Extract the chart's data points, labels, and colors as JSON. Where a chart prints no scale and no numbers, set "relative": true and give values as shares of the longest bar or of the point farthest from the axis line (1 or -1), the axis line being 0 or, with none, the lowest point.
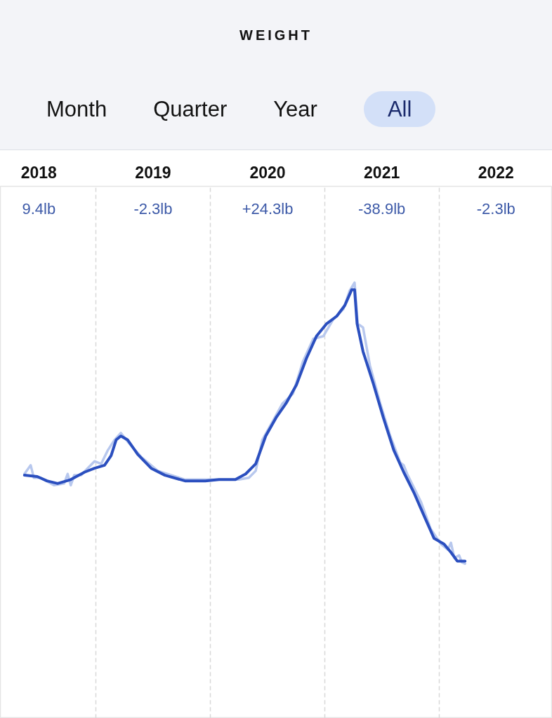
{
  "chart_data": {
    "type": "line",
    "title": "WEIGHT",
    "relative": true,
    "grid": "x",
    "line_style": "solid",
    "marker": "none",
    "annotations": [
      "Month",
      "Quarter",
      "Year",
      "All",
      "9.4lb",
      "-2.3lb",
      "+24.3lb",
      "-38.9lb",
      "-2.3lb"
    ],
    "xlim": [
      "2018-03-01",
      "2022-12-29"
    ],
    "xticks": [
      {
        "value": "2018-07-02",
        "label": "2018"
      },
      {
        "value": "2019-01-01",
        "label": null
      },
      {
        "value": "2019-07-02",
        "label": "2019"
      },
      {
        "value": "2020-01-01",
        "label": null
      },
      {
        "value": "2020-07-02",
        "label": "2020"
      },
      {
        "value": "2021-01-01",
        "label": null
      },
      {
        "value": "2021-07-02",
        "label": "2021"
      },
      {
        "value": "2022-01-01",
        "label": null
      },
      {
        "value": "2022-07-02",
        "label": "2022"
      }
    ],
    "series": [
      {
        "color": "#b8c8ee",
        "x": [
          "2018-05-17",
          "2018-06-06",
          "2018-06-16",
          "2018-07-07",
          "2018-08-20",
          "2018-09-21",
          "2018-10-02",
          "2018-10-12",
          "2018-10-23",
          "2018-11-14",
          "2018-12-05",
          "2018-12-27",
          "2019-01-17",
          "2019-02-08",
          "2019-03-01",
          "2019-03-21",
          "2019-04-12",
          "2019-05-25",
          "2019-07-17",
          "2019-10-12",
          "2020-01-29",
          "2020-04-01",
          "2020-05-03",
          "2020-05-25",
          "2020-06-15",
          "2020-07-18",
          "2020-08-19",
          "2020-09-21",
          "2020-10-23",
          "2020-11-25",
          "2020-12-27",
          "2021-01-28",
          "2021-03-01",
          "2021-03-21",
          "2021-04-06",
          "2021-04-16",
          "2021-05-03",
          "2021-05-25",
          "2021-06-27",
          "2021-07-29",
          "2021-08-30",
          "2021-09-10",
          "2021-09-21",
          "2021-11-04",
          "2021-12-05",
          "2022-01-07",
          "2022-01-29",
          "2022-02-08",
          "2022-02-19",
          "2022-03-06",
          "2022-03-15",
          "2022-03-25"
        ],
        "values": [
          0.561,
          0.581,
          0.552,
          0.552,
          0.535,
          0.539,
          0.561,
          0.535,
          0.558,
          0.558,
          0.574,
          0.59,
          0.584,
          0.616,
          0.639,
          0.655,
          0.635,
          0.6,
          0.568,
          0.548,
          0.548,
          0.548,
          0.552,
          0.568,
          0.639,
          0.681,
          0.723,
          0.745,
          0.819,
          0.871,
          0.877,
          0.916,
          0.939,
          0.981,
          1,
          0.906,
          0.897,
          0.81,
          0.723,
          0.648,
          0.587,
          0.581,
          0.561,
          0.497,
          0.435,
          0.4,
          0.387,
          0.403,
          0.368,
          0.374,
          0.358,
          0.355
        ]
      },
      {
        "color": "#2b4fbf",
        "x": [
          "2018-05-17",
          "2018-06-27",
          "2018-07-28",
          "2018-08-31",
          "2018-10-12",
          "2018-11-25",
          "2018-12-27",
          "2019-01-28",
          "2019-02-18",
          "2019-03-06",
          "2019-03-21",
          "2019-04-12",
          "2019-05-14",
          "2019-06-26",
          "2019-08-09",
          "2019-10-12",
          "2019-12-16",
          "2020-01-29",
          "2020-03-21",
          "2020-04-23",
          "2020-05-25",
          "2020-06-26",
          "2020-07-29",
          "2020-08-30",
          "2020-10-02",
          "2020-11-03",
          "2020-12-05",
          "2021-01-07",
          "2021-02-08",
          "2021-03-06",
          "2021-03-28",
          "2021-04-06",
          "2021-04-14",
          "2021-05-03",
          "2021-06-05",
          "2021-07-07",
          "2021-08-09",
          "2021-09-10",
          "2021-10-12",
          "2021-11-14",
          "2021-12-16",
          "2022-01-17",
          "2022-02-08",
          "2022-02-28",
          "2022-03-25"
        ],
        "values": [
          0.558,
          0.555,
          0.545,
          0.539,
          0.548,
          0.565,
          0.574,
          0.581,
          0.603,
          0.639,
          0.648,
          0.639,
          0.606,
          0.574,
          0.558,
          0.545,
          0.545,
          0.548,
          0.548,
          0.561,
          0.584,
          0.648,
          0.69,
          0.723,
          0.765,
          0.826,
          0.877,
          0.906,
          0.923,
          0.948,
          0.984,
          0.984,
          0.906,
          0.842,
          0.768,
          0.69,
          0.616,
          0.565,
          0.519,
          0.465,
          0.413,
          0.4,
          0.381,
          0.361,
          0.361
        ]
      }
    ]
  }
}
